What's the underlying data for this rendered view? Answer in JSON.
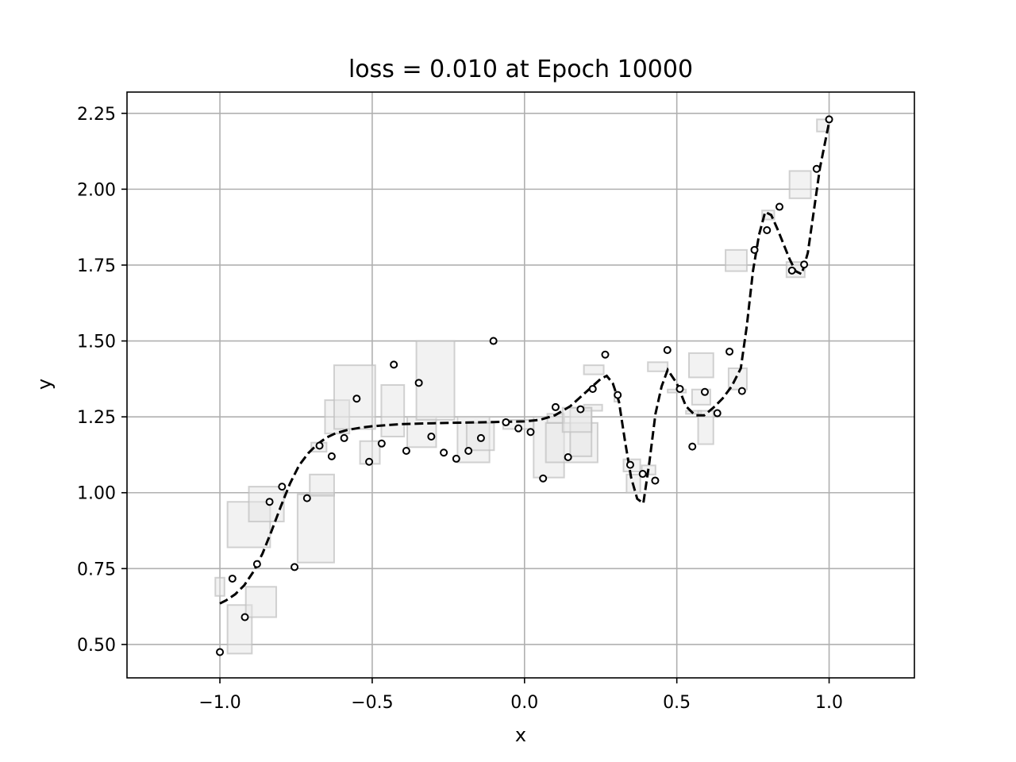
{
  "chart_data": {
    "type": "scatter",
    "title": "loss = 0.010 at Epoch 10000",
    "xlabel": "x",
    "ylabel": "y",
    "xlim": [
      -1.305,
      1.28
    ],
    "ylim": [
      0.39,
      2.32
    ],
    "x_ticks": [
      -1.0,
      -0.5,
      0.0,
      0.5,
      1.0
    ],
    "x_tick_labels": [
      "−1.0",
      "−0.5",
      "0.0",
      "0.5",
      "1.0"
    ],
    "y_ticks": [
      0.5,
      0.75,
      1.0,
      1.25,
      1.5,
      1.75,
      2.0,
      2.25
    ],
    "y_tick_labels": [
      "0.50",
      "0.75",
      "1.00",
      "1.25",
      "1.50",
      "1.75",
      "2.00",
      "2.25"
    ],
    "grid": true,
    "colors": {
      "points": "#000000",
      "fit_line": "#000000",
      "boxes": "#e6e6e6",
      "grid": "#b0b0b0"
    },
    "points": {
      "x": [
        -1.0,
        -0.959,
        -0.918,
        -0.878,
        -0.837,
        -0.796,
        -0.755,
        -0.714,
        -0.673,
        -0.633,
        -0.592,
        -0.551,
        -0.51,
        -0.469,
        -0.429,
        -0.388,
        -0.347,
        -0.306,
        -0.265,
        -0.224,
        -0.184,
        -0.143,
        -0.102,
        -0.061,
        -0.02,
        0.02,
        0.061,
        0.102,
        0.143,
        0.184,
        0.224,
        0.265,
        0.306,
        0.347,
        0.388,
        0.429,
        0.469,
        0.51,
        0.551,
        0.592,
        0.633,
        0.673,
        0.714,
        0.755,
        0.796,
        0.837,
        0.878,
        0.918,
        0.959,
        1.0
      ],
      "y": [
        0.475,
        0.717,
        0.59,
        0.765,
        0.97,
        1.02,
        0.755,
        0.982,
        1.155,
        1.12,
        1.18,
        1.31,
        1.102,
        1.162,
        1.422,
        1.138,
        1.362,
        1.185,
        1.132,
        1.112,
        1.138,
        1.18,
        1.5,
        1.232,
        1.212,
        1.2,
        1.047,
        1.282,
        1.117,
        1.275,
        1.342,
        1.455,
        1.322,
        1.092,
        1.062,
        1.04,
        1.47,
        1.342,
        1.152,
        1.332,
        1.262,
        1.465,
        1.335,
        1.8,
        1.865,
        1.942,
        1.732,
        1.752,
        2.067,
        2.23
      ]
    },
    "fit_line": {
      "x": [
        -1.0,
        -0.98,
        -0.95,
        -0.92,
        -0.89,
        -0.86,
        -0.83,
        -0.8,
        -0.77,
        -0.74,
        -0.71,
        -0.68,
        -0.65,
        -0.62,
        -0.58,
        -0.54,
        -0.5,
        -0.45,
        -0.4,
        -0.3,
        -0.2,
        -0.1,
        0.0,
        0.05,
        0.1,
        0.15,
        0.2,
        0.25,
        0.27,
        0.29,
        0.31,
        0.33,
        0.35,
        0.37,
        0.39,
        0.41,
        0.43,
        0.45,
        0.47,
        0.5,
        0.53,
        0.56,
        0.59,
        0.62,
        0.65,
        0.68,
        0.71,
        0.73,
        0.75,
        0.77,
        0.79,
        0.81,
        0.83,
        0.85,
        0.87,
        0.89,
        0.91,
        0.93,
        0.95,
        0.97,
        1.0
      ],
      "y": [
        0.635,
        0.645,
        0.665,
        0.695,
        0.74,
        0.8,
        0.875,
        0.955,
        1.03,
        1.09,
        1.13,
        1.16,
        1.182,
        1.196,
        1.207,
        1.214,
        1.219,
        1.223,
        1.226,
        1.229,
        1.231,
        1.233,
        1.235,
        1.24,
        1.255,
        1.285,
        1.33,
        1.375,
        1.385,
        1.36,
        1.3,
        1.17,
        1.05,
        0.98,
        0.965,
        1.1,
        1.26,
        1.35,
        1.405,
        1.36,
        1.285,
        1.255,
        1.255,
        1.28,
        1.31,
        1.35,
        1.41,
        1.55,
        1.73,
        1.85,
        1.925,
        1.915,
        1.87,
        1.82,
        1.77,
        1.73,
        1.72,
        1.79,
        1.93,
        2.07,
        2.22
      ]
    },
    "boxes": [
      {
        "x": [
          -1.015,
          -0.985
        ],
        "y": [
          0.66,
          0.72
        ]
      },
      {
        "x": [
          -0.975,
          -0.895
        ],
        "y": [
          0.47,
          0.63
        ]
      },
      {
        "x": [
          -0.915,
          -0.815
        ],
        "y": [
          0.59,
          0.69
        ]
      },
      {
        "x": [
          -0.975,
          -0.835
        ],
        "y": [
          0.82,
          0.97
        ]
      },
      {
        "x": [
          -0.905,
          -0.79
        ],
        "y": [
          0.905,
          1.02
        ]
      },
      {
        "x": [
          -0.745,
          -0.625
        ],
        "y": [
          0.77,
          0.995
        ]
      },
      {
        "x": [
          -0.705,
          -0.625
        ],
        "y": [
          0.99,
          1.06
        ]
      },
      {
        "x": [
          -0.7,
          -0.65
        ],
        "y": [
          1.135,
          1.165
        ]
      },
      {
        "x": [
          -0.655,
          -0.575
        ],
        "y": [
          1.195,
          1.305
        ]
      },
      {
        "x": [
          -0.625,
          -0.49
        ],
        "y": [
          1.21,
          1.42
        ]
      },
      {
        "x": [
          -0.54,
          -0.475
        ],
        "y": [
          1.095,
          1.17
        ]
      },
      {
        "x": [
          -0.47,
          -0.395
        ],
        "y": [
          1.185,
          1.355
        ]
      },
      {
        "x": [
          -0.385,
          -0.29
        ],
        "y": [
          1.15,
          1.25
        ]
      },
      {
        "x": [
          -0.355,
          -0.23
        ],
        "y": [
          1.24,
          1.5
        ]
      },
      {
        "x": [
          -0.22,
          -0.115
        ],
        "y": [
          1.1,
          1.25
        ]
      },
      {
        "x": [
          -0.19,
          -0.1
        ],
        "y": [
          1.14,
          1.23
        ]
      },
      {
        "x": [
          -0.07,
          0.03
        ],
        "y": [
          1.21,
          1.24
        ]
      },
      {
        "x": [
          0.03,
          0.13
        ],
        "y": [
          1.05,
          1.25
        ]
      },
      {
        "x": [
          0.07,
          0.24
        ],
        "y": [
          1.1,
          1.23
        ]
      },
      {
        "x": [
          0.075,
          0.13
        ],
        "y": [
          1.23,
          1.26
        ]
      },
      {
        "x": [
          0.15,
          0.22
        ],
        "y": [
          1.12,
          1.28
        ]
      },
      {
        "x": [
          0.195,
          0.255
        ],
        "y": [
          1.27,
          1.29
        ]
      },
      {
        "x": [
          0.125,
          0.22
        ],
        "y": [
          1.2,
          1.28
        ]
      },
      {
        "x": [
          0.195,
          0.26
        ],
        "y": [
          1.39,
          1.42
        ]
      },
      {
        "x": [
          0.295,
          0.31
        ],
        "y": [
          1.3,
          1.33
        ]
      },
      {
        "x": [
          0.325,
          0.38
        ],
        "y": [
          1.07,
          1.11
        ]
      },
      {
        "x": [
          0.335,
          0.38
        ],
        "y": [
          1.0,
          1.06
        ]
      },
      {
        "x": [
          0.385,
          0.43
        ],
        "y": [
          1.06,
          1.09
        ]
      },
      {
        "x": [
          0.405,
          0.47
        ],
        "y": [
          1.4,
          1.43
        ]
      },
      {
        "x": [
          0.47,
          0.53
        ],
        "y": [
          1.33,
          1.34
        ]
      },
      {
        "x": [
          0.53,
          0.58
        ],
        "y": [
          1.26,
          1.27
        ]
      },
      {
        "x": [
          0.54,
          0.62
        ],
        "y": [
          1.38,
          1.46
        ]
      },
      {
        "x": [
          0.55,
          0.61
        ],
        "y": [
          1.29,
          1.34
        ]
      },
      {
        "x": [
          0.57,
          0.62
        ],
        "y": [
          1.16,
          1.27
        ]
      },
      {
        "x": [
          0.67,
          0.73
        ],
        "y": [
          1.34,
          1.41
        ]
      },
      {
        "x": [
          0.66,
          0.73
        ],
        "y": [
          1.73,
          1.8
        ]
      },
      {
        "x": [
          0.78,
          0.82
        ],
        "y": [
          1.9,
          1.93
        ]
      },
      {
        "x": [
          0.86,
          0.92
        ],
        "y": [
          1.71,
          1.76
        ]
      },
      {
        "x": [
          0.87,
          0.94
        ],
        "y": [
          1.97,
          2.06
        ]
      },
      {
        "x": [
          0.96,
          1.0
        ],
        "y": [
          2.19,
          2.23
        ]
      }
    ]
  }
}
